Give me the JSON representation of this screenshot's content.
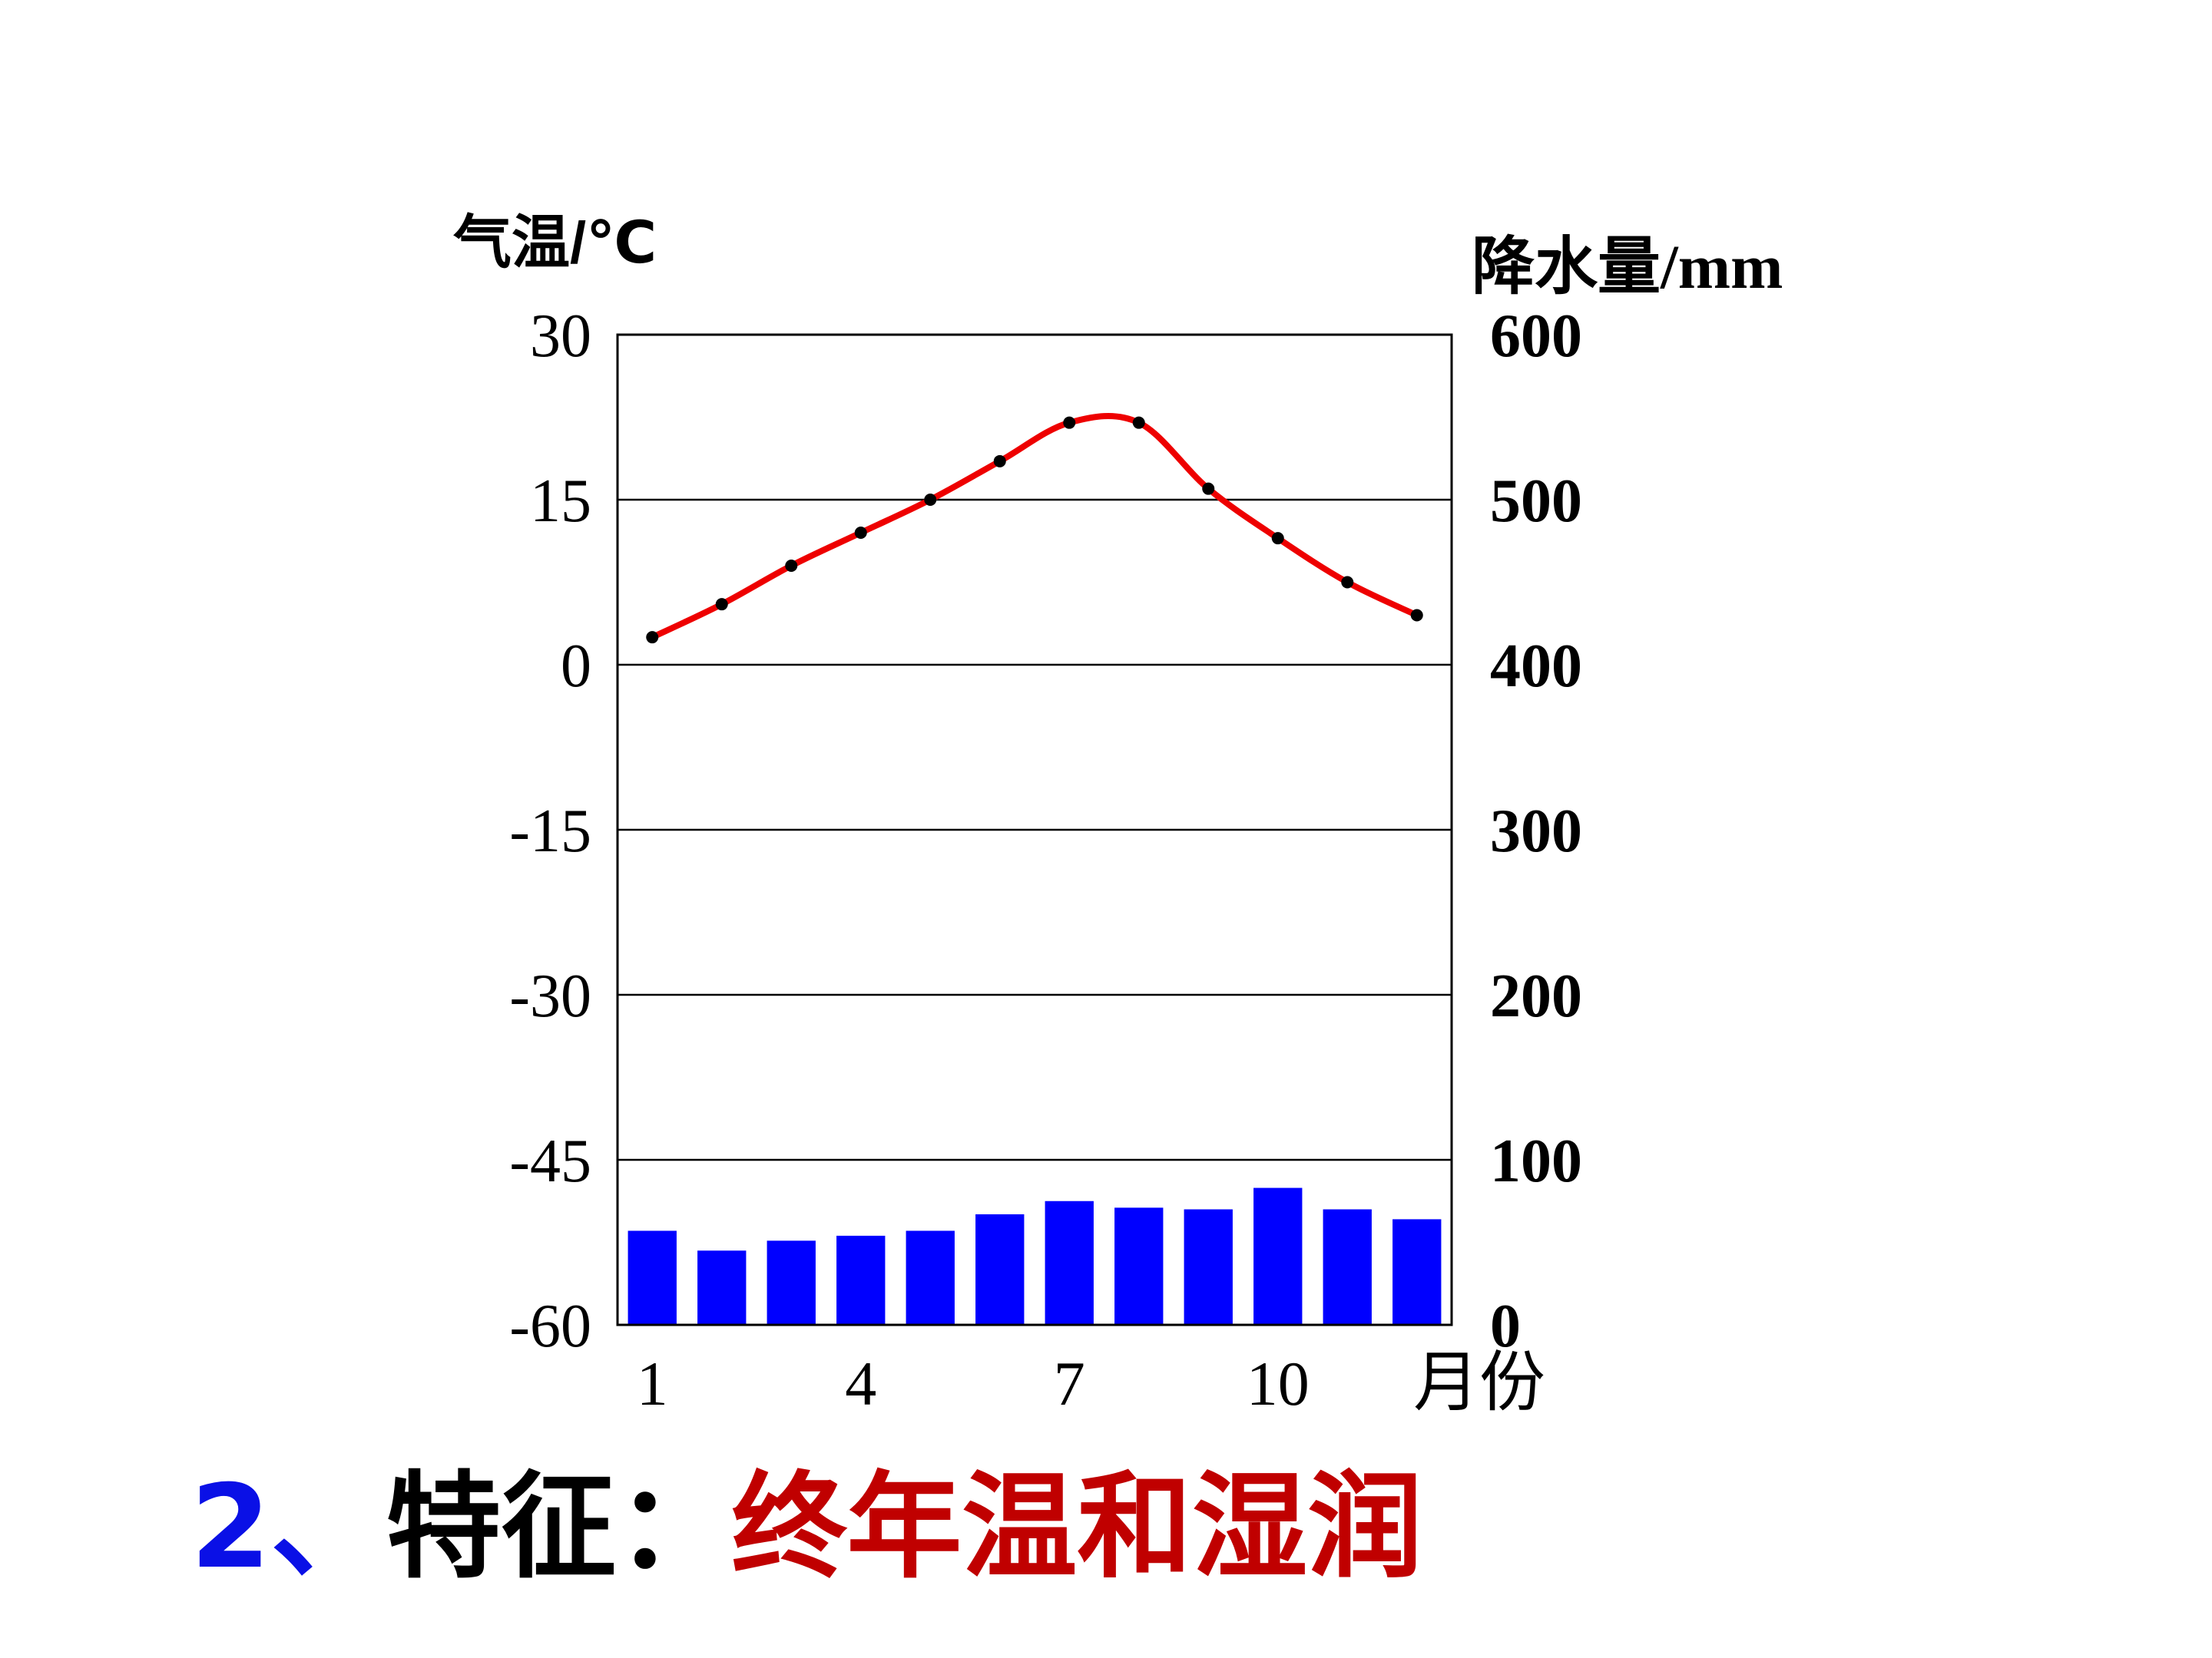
{
  "chart_data": {
    "type": "bar+line",
    "left_axis": {
      "label": "气温/℃",
      "ticks": [
        "30",
        "15",
        "0",
        "-15",
        "-30",
        "-45",
        "-60"
      ],
      "ylim": [
        -60,
        30
      ]
    },
    "right_axis": {
      "label": "降水量/mm",
      "ticks": [
        "600",
        "500",
        "400",
        "300",
        "200",
        "100",
        "0"
      ],
      "ylim": [
        0,
        600
      ]
    },
    "x_axis": {
      "label": "月份",
      "ticks": [
        "1",
        "4",
        "7",
        "10"
      ]
    },
    "months": [
      1,
      2,
      3,
      4,
      5,
      6,
      7,
      8,
      9,
      10,
      11,
      12
    ],
    "temperature": [
      2.5,
      5.5,
      9,
      12,
      15,
      18.5,
      22,
      22,
      16,
      11.5,
      7.5,
      4.5
    ],
    "precipitation": [
      57,
      45,
      51,
      54,
      57,
      67,
      75,
      71,
      70,
      83,
      70,
      64
    ],
    "colors": {
      "temperature_line": "#ee0000",
      "temperature_points": "#000000",
      "precipitation_bars": "#0000ff"
    },
    "grid": true
  },
  "caption": {
    "number": "2、",
    "label": "特征：",
    "text": "终年温和湿润",
    "colors": {
      "number": "#0a10e6",
      "label": "#000000",
      "text": "#c00000"
    }
  }
}
